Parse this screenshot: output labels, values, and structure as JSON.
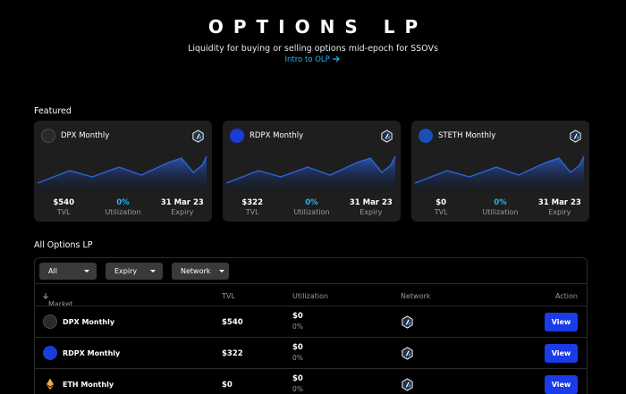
{
  "hero": {
    "title": "OPTIONS LP",
    "subtitle": "Liquidity for buying or selling options mid-epoch for SSOVs",
    "link": "Intro to OLP"
  },
  "featured": {
    "label": "Featured",
    "cards": [
      {
        "name": "DPX Monthly",
        "icon": "dpx-token-icon",
        "tvl": "$540",
        "utilization": "0%",
        "expiry": "31 Mar 23",
        "tvl_label": "TVL",
        "utilization_label": "Utilization",
        "expiry_label": "Expiry"
      },
      {
        "name": "RDPX Monthly",
        "icon": "rdpx-token-icon",
        "tvl": "$322",
        "utilization": "0%",
        "expiry": "31 Mar 23",
        "tvl_label": "TVL",
        "utilization_label": "Utilization",
        "expiry_label": "Expiry"
      },
      {
        "name": "STETH Monthly",
        "icon": "steth-token-icon",
        "tvl": "$0",
        "utilization": "0%",
        "expiry": "31 Mar 23",
        "tvl_label": "TVL",
        "utilization_label": "Utilization",
        "expiry_label": "Expiry"
      }
    ]
  },
  "all": {
    "label": "All Options LP",
    "filters": [
      "All",
      "Expiry",
      "Network"
    ],
    "columns": {
      "market": "Market",
      "tvl": "TVL",
      "utilization": "Utilization",
      "network": "Network",
      "action": "Action"
    },
    "rows": [
      {
        "market": "DPX Monthly",
        "icon": "dpx-token-icon",
        "tvl": "$540",
        "util_value": "$0",
        "util_pct": "0%",
        "action": "View"
      },
      {
        "market": "RDPX Monthly",
        "icon": "rdpx-token-icon",
        "tvl": "$322",
        "util_value": "$0",
        "util_pct": "0%",
        "action": "View"
      },
      {
        "market": "ETH Monthly",
        "icon": "eth-token-icon",
        "tvl": "$0",
        "util_value": "$0",
        "util_pct": "0%",
        "action": "View"
      }
    ]
  },
  "colors": {
    "accent": "#22b6f2",
    "button": "#1a3be8",
    "card_bg": "#1e1e1e",
    "chart_fill": "#1c3f8a"
  }
}
